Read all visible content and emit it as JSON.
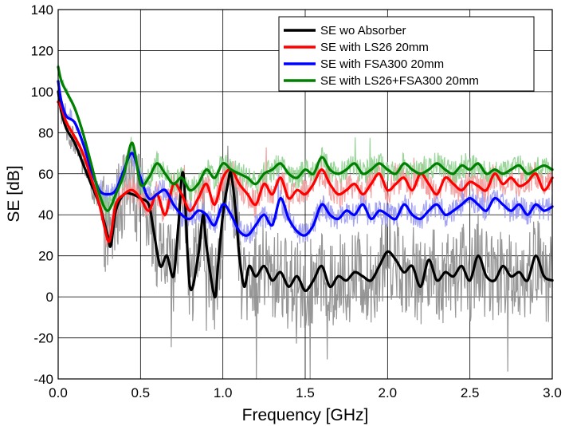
{
  "chart_data": {
    "type": "line",
    "title": "",
    "xlabel": "Frequency [GHz]",
    "ylabel": "SE [dB]",
    "xlim": [
      0.0,
      3.0
    ],
    "ylim": [
      -40,
      140
    ],
    "xticks": [
      "0.0",
      "0.5",
      "1.0",
      "1.5",
      "2.0",
      "2.5",
      "3.0"
    ],
    "yticks": [
      "-40",
      "-20",
      "0",
      "20",
      "40",
      "60",
      "80",
      "100",
      "120",
      "140"
    ],
    "grid": true,
    "legend_position": "top-right",
    "series": [
      {
        "name": "SE wo Absorber",
        "color": "#000000",
        "raw_color": "#8c8c8c",
        "x": [
          0.0,
          0.02,
          0.05,
          0.1,
          0.15,
          0.2,
          0.25,
          0.3,
          0.32,
          0.35,
          0.4,
          0.45,
          0.5,
          0.55,
          0.58,
          0.62,
          0.66,
          0.7,
          0.73,
          0.76,
          0.8,
          0.85,
          0.88,
          0.9,
          0.95,
          0.97,
          1.0,
          1.03,
          1.05,
          1.08,
          1.1,
          1.13,
          1.16,
          1.2,
          1.25,
          1.3,
          1.35,
          1.4,
          1.45,
          1.5,
          1.55,
          1.6,
          1.65,
          1.7,
          1.75,
          1.8,
          1.85,
          1.9,
          1.95,
          2.0,
          2.05,
          2.1,
          2.15,
          2.2,
          2.25,
          2.3,
          2.35,
          2.4,
          2.45,
          2.5,
          2.55,
          2.6,
          2.65,
          2.7,
          2.75,
          2.8,
          2.85,
          2.9,
          2.95,
          3.0
        ],
        "y": [
          100,
          90,
          82,
          75,
          65,
          55,
          45,
          30,
          25,
          42,
          50,
          50,
          48,
          45,
          32,
          15,
          20,
          10,
          35,
          60,
          5,
          20,
          40,
          25,
          0,
          15,
          40,
          55,
          60,
          40,
          20,
          5,
          15,
          10,
          15,
          8,
          12,
          5,
          10,
          3,
          8,
          15,
          5,
          10,
          8,
          12,
          10,
          8,
          15,
          22,
          18,
          12,
          15,
          5,
          18,
          8,
          12,
          10,
          15,
          8,
          20,
          10,
          8,
          15,
          10,
          12,
          8,
          20,
          10,
          8
        ]
      },
      {
        "name": "SE with LS26 20mm",
        "color": "#ff0000",
        "raw_color": "#f29a9a",
        "x": [
          0.0,
          0.02,
          0.05,
          0.1,
          0.15,
          0.2,
          0.25,
          0.3,
          0.32,
          0.35,
          0.4,
          0.45,
          0.5,
          0.55,
          0.6,
          0.65,
          0.7,
          0.75,
          0.8,
          0.85,
          0.9,
          0.95,
          1.0,
          1.05,
          1.1,
          1.15,
          1.2,
          1.25,
          1.3,
          1.35,
          1.4,
          1.45,
          1.5,
          1.55,
          1.6,
          1.65,
          1.7,
          1.75,
          1.8,
          1.85,
          1.9,
          1.95,
          2.0,
          2.05,
          2.1,
          2.15,
          2.2,
          2.25,
          2.3,
          2.35,
          2.4,
          2.45,
          2.5,
          2.55,
          2.6,
          2.65,
          2.7,
          2.75,
          2.8,
          2.85,
          2.9,
          2.95,
          3.0
        ],
        "y": [
          95,
          92,
          85,
          78,
          70,
          58,
          45,
          28,
          30,
          45,
          50,
          52,
          48,
          42,
          50,
          40,
          55,
          50,
          42,
          48,
          55,
          45,
          58,
          62,
          55,
          50,
          45,
          55,
          50,
          58,
          48,
          52,
          50,
          55,
          62,
          55,
          50,
          52,
          55,
          50,
          55,
          60,
          52,
          55,
          58,
          52,
          60,
          55,
          50,
          58,
          55,
          52,
          56,
          54,
          52,
          60,
          55,
          58,
          54,
          56,
          60,
          52,
          58
        ]
      },
      {
        "name": "SE with FSA300 20mm",
        "color": "#0000ff",
        "raw_color": "#9a9af2",
        "x": [
          0.0,
          0.02,
          0.05,
          0.1,
          0.15,
          0.2,
          0.25,
          0.3,
          0.35,
          0.4,
          0.45,
          0.5,
          0.55,
          0.6,
          0.65,
          0.7,
          0.75,
          0.8,
          0.85,
          0.9,
          0.95,
          1.0,
          1.05,
          1.1,
          1.15,
          1.2,
          1.25,
          1.3,
          1.35,
          1.4,
          1.45,
          1.5,
          1.55,
          1.6,
          1.65,
          1.7,
          1.75,
          1.8,
          1.85,
          1.9,
          1.95,
          2.0,
          2.05,
          2.1,
          2.15,
          2.2,
          2.25,
          2.3,
          2.35,
          2.4,
          2.45,
          2.5,
          2.55,
          2.6,
          2.65,
          2.7,
          2.75,
          2.8,
          2.85,
          2.9,
          2.95,
          3.0
        ],
        "y": [
          105,
          95,
          88,
          85,
          75,
          62,
          52,
          50,
          52,
          62,
          70,
          58,
          48,
          50,
          52,
          45,
          40,
          38,
          42,
          40,
          35,
          45,
          40,
          32,
          30,
          35,
          40,
          35,
          48,
          38,
          32,
          30,
          35,
          45,
          40,
          38,
          42,
          40,
          45,
          38,
          42,
          40,
          38,
          45,
          40,
          38,
          42,
          45,
          40,
          42,
          45,
          48,
          45,
          42,
          48,
          45,
          42,
          45,
          40,
          45,
          42,
          44
        ]
      },
      {
        "name": "SE with LS26+FSA300 20mm",
        "color": "#008000",
        "raw_color": "#8fd08f",
        "x": [
          0.0,
          0.02,
          0.05,
          0.1,
          0.15,
          0.2,
          0.25,
          0.3,
          0.35,
          0.4,
          0.45,
          0.5,
          0.55,
          0.6,
          0.65,
          0.7,
          0.75,
          0.8,
          0.85,
          0.9,
          0.95,
          1.0,
          1.05,
          1.1,
          1.15,
          1.2,
          1.25,
          1.3,
          1.35,
          1.4,
          1.45,
          1.5,
          1.55,
          1.6,
          1.65,
          1.7,
          1.75,
          1.8,
          1.85,
          1.9,
          1.95,
          2.0,
          2.05,
          2.1,
          2.15,
          2.2,
          2.25,
          2.3,
          2.35,
          2.4,
          2.45,
          2.5,
          2.55,
          2.6,
          2.65,
          2.7,
          2.75,
          2.8,
          2.85,
          2.9,
          2.95,
          3.0
        ],
        "y": [
          112,
          105,
          100,
          92,
          80,
          65,
          50,
          42,
          50,
          60,
          75,
          55,
          58,
          65,
          60,
          55,
          58,
          52,
          55,
          62,
          58,
          65,
          62,
          60,
          58,
          55,
          60,
          62,
          65,
          60,
          58,
          62,
          60,
          68,
          62,
          60,
          62,
          65,
          60,
          62,
          65,
          62,
          60,
          65,
          62,
          60,
          62,
          65,
          62,
          60,
          64,
          62,
          65,
          60,
          62,
          60,
          62,
          64,
          60,
          62,
          64,
          62
        ]
      }
    ]
  }
}
